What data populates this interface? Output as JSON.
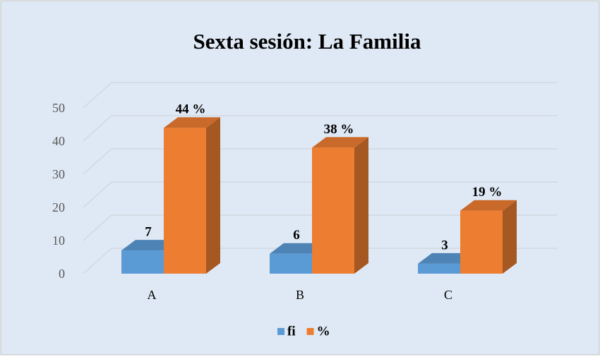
{
  "chart_data": {
    "type": "bar3d",
    "title": "Sexta sesión: La Familia",
    "categories": [
      "A",
      "B",
      "C"
    ],
    "series": [
      {
        "name": "fi",
        "color": "#5b9bd5",
        "values": [
          7,
          6,
          3
        ]
      },
      {
        "name": "%",
        "color": "#ed7d31",
        "values": [
          44,
          38,
          19
        ],
        "value_labels": [
          "44 %",
          "38 %",
          "19 %"
        ]
      }
    ],
    "ylim": [
      0,
      50
    ],
    "yticks": [
      0,
      10,
      20,
      30,
      40,
      50
    ],
    "grid": true,
    "legend": "bottom"
  }
}
